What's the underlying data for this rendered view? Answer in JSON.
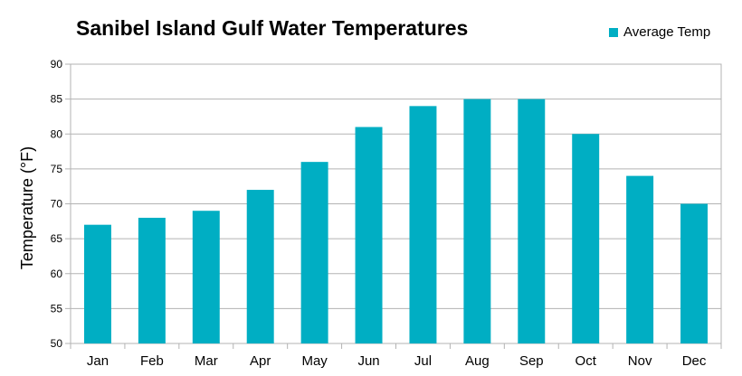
{
  "chart_data": {
    "type": "bar",
    "title": "Sanibel Island Gulf Water Temperatures",
    "xlabel": "",
    "ylabel": "Temperature (°F)",
    "ylim": [
      50,
      90
    ],
    "ytick_step": 5,
    "grid": true,
    "legend_position": "top-right",
    "categories": [
      "Jan",
      "Feb",
      "Mar",
      "Apr",
      "May",
      "Jun",
      "Jul",
      "Aug",
      "Sep",
      "Oct",
      "Nov",
      "Dec"
    ],
    "series": [
      {
        "name": "Average Temp",
        "color": "#00aec3",
        "values": [
          67,
          68,
          69,
          72,
          76,
          81,
          84,
          85,
          85,
          80,
          74,
          70
        ]
      }
    ]
  }
}
